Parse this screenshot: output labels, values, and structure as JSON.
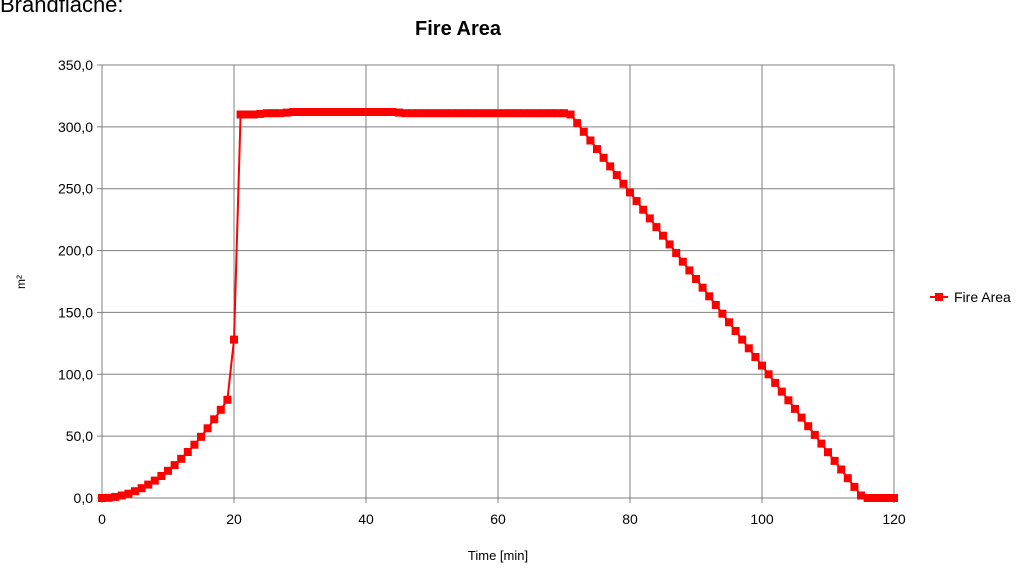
{
  "header": {
    "text": "Brandfläche:"
  },
  "chart_data": {
    "type": "line",
    "title": "Fire Area",
    "xlabel": "Time [min]",
    "ylabel": "m²",
    "xlim": [
      0,
      120
    ],
    "ylim": [
      0,
      350
    ],
    "x_ticks": [
      "0",
      "20",
      "40",
      "60",
      "80",
      "100",
      "120"
    ],
    "y_ticks": [
      "0,0",
      "50,0",
      "100,0",
      "150,0",
      "200,0",
      "250,0",
      "300,0",
      "350,0"
    ],
    "grid": true,
    "legend": "right",
    "series": [
      {
        "name": "Fire Area",
        "color": "#ff0000",
        "marker": "square",
        "points": [
          [
            0,
            0
          ],
          [
            1,
            0.2
          ],
          [
            2,
            0.9
          ],
          [
            3,
            2.0
          ],
          [
            4,
            3.5
          ],
          [
            5,
            5.5
          ],
          [
            6,
            7.9
          ],
          [
            7,
            10.8
          ],
          [
            8,
            14.1
          ],
          [
            9,
            17.8
          ],
          [
            10,
            22.0
          ],
          [
            11,
            26.6
          ],
          [
            12,
            31.7
          ],
          [
            13,
            37.2
          ],
          [
            14,
            43.1
          ],
          [
            15,
            49.5
          ],
          [
            16,
            56.3
          ],
          [
            17,
            63.6
          ],
          [
            18,
            71.3
          ],
          [
            19,
            79.4
          ],
          [
            20,
            128
          ],
          [
            21,
            310
          ],
          [
            22,
            310
          ],
          [
            23,
            310
          ],
          [
            24,
            310.5
          ],
          [
            25,
            311
          ],
          [
            26,
            311
          ],
          [
            27,
            311
          ],
          [
            28,
            311.5
          ],
          [
            29,
            312
          ],
          [
            30,
            312
          ],
          [
            31,
            312
          ],
          [
            32,
            312
          ],
          [
            33,
            312
          ],
          [
            34,
            312
          ],
          [
            35,
            312
          ],
          [
            36,
            312
          ],
          [
            37,
            312
          ],
          [
            38,
            312
          ],
          [
            39,
            312
          ],
          [
            40,
            312
          ],
          [
            41,
            312
          ],
          [
            42,
            312
          ],
          [
            43,
            312
          ],
          [
            44,
            312
          ],
          [
            45,
            311.5
          ],
          [
            46,
            311
          ],
          [
            47,
            311
          ],
          [
            48,
            311
          ],
          [
            49,
            311
          ],
          [
            50,
            311
          ],
          [
            51,
            311
          ],
          [
            52,
            311
          ],
          [
            53,
            311
          ],
          [
            54,
            311
          ],
          [
            55,
            311
          ],
          [
            56,
            311
          ],
          [
            57,
            311
          ],
          [
            58,
            311
          ],
          [
            59,
            311
          ],
          [
            60,
            311
          ],
          [
            61,
            311
          ],
          [
            62,
            311
          ],
          [
            63,
            311
          ],
          [
            64,
            311
          ],
          [
            65,
            311
          ],
          [
            66,
            311
          ],
          [
            67,
            311
          ],
          [
            68,
            311
          ],
          [
            69,
            311
          ],
          [
            70,
            311
          ],
          [
            71,
            310
          ],
          [
            72,
            303
          ],
          [
            73,
            296
          ],
          [
            74,
            289
          ],
          [
            75,
            282
          ],
          [
            76,
            275
          ],
          [
            77,
            268
          ],
          [
            78,
            261
          ],
          [
            79,
            254
          ],
          [
            80,
            247
          ],
          [
            81,
            240
          ],
          [
            82,
            233
          ],
          [
            83,
            226
          ],
          [
            84,
            219
          ],
          [
            85,
            212
          ],
          [
            86,
            205
          ],
          [
            87,
            198
          ],
          [
            88,
            191
          ],
          [
            89,
            184
          ],
          [
            90,
            177
          ],
          [
            91,
            170
          ],
          [
            92,
            163
          ],
          [
            93,
            156
          ],
          [
            94,
            149
          ],
          [
            95,
            142
          ],
          [
            96,
            135
          ],
          [
            97,
            128
          ],
          [
            98,
            121
          ],
          [
            99,
            114
          ],
          [
            100,
            107
          ],
          [
            101,
            100
          ],
          [
            102,
            93
          ],
          [
            103,
            86
          ],
          [
            104,
            79
          ],
          [
            105,
            72
          ],
          [
            106,
            65
          ],
          [
            107,
            58
          ],
          [
            108,
            51
          ],
          [
            109,
            44
          ],
          [
            110,
            37
          ],
          [
            111,
            30
          ],
          [
            112,
            23
          ],
          [
            113,
            16
          ],
          [
            114,
            9
          ],
          [
            115,
            2
          ],
          [
            116,
            0
          ],
          [
            117,
            0
          ],
          [
            118,
            0
          ],
          [
            119,
            0
          ],
          [
            120,
            0
          ]
        ]
      }
    ]
  }
}
